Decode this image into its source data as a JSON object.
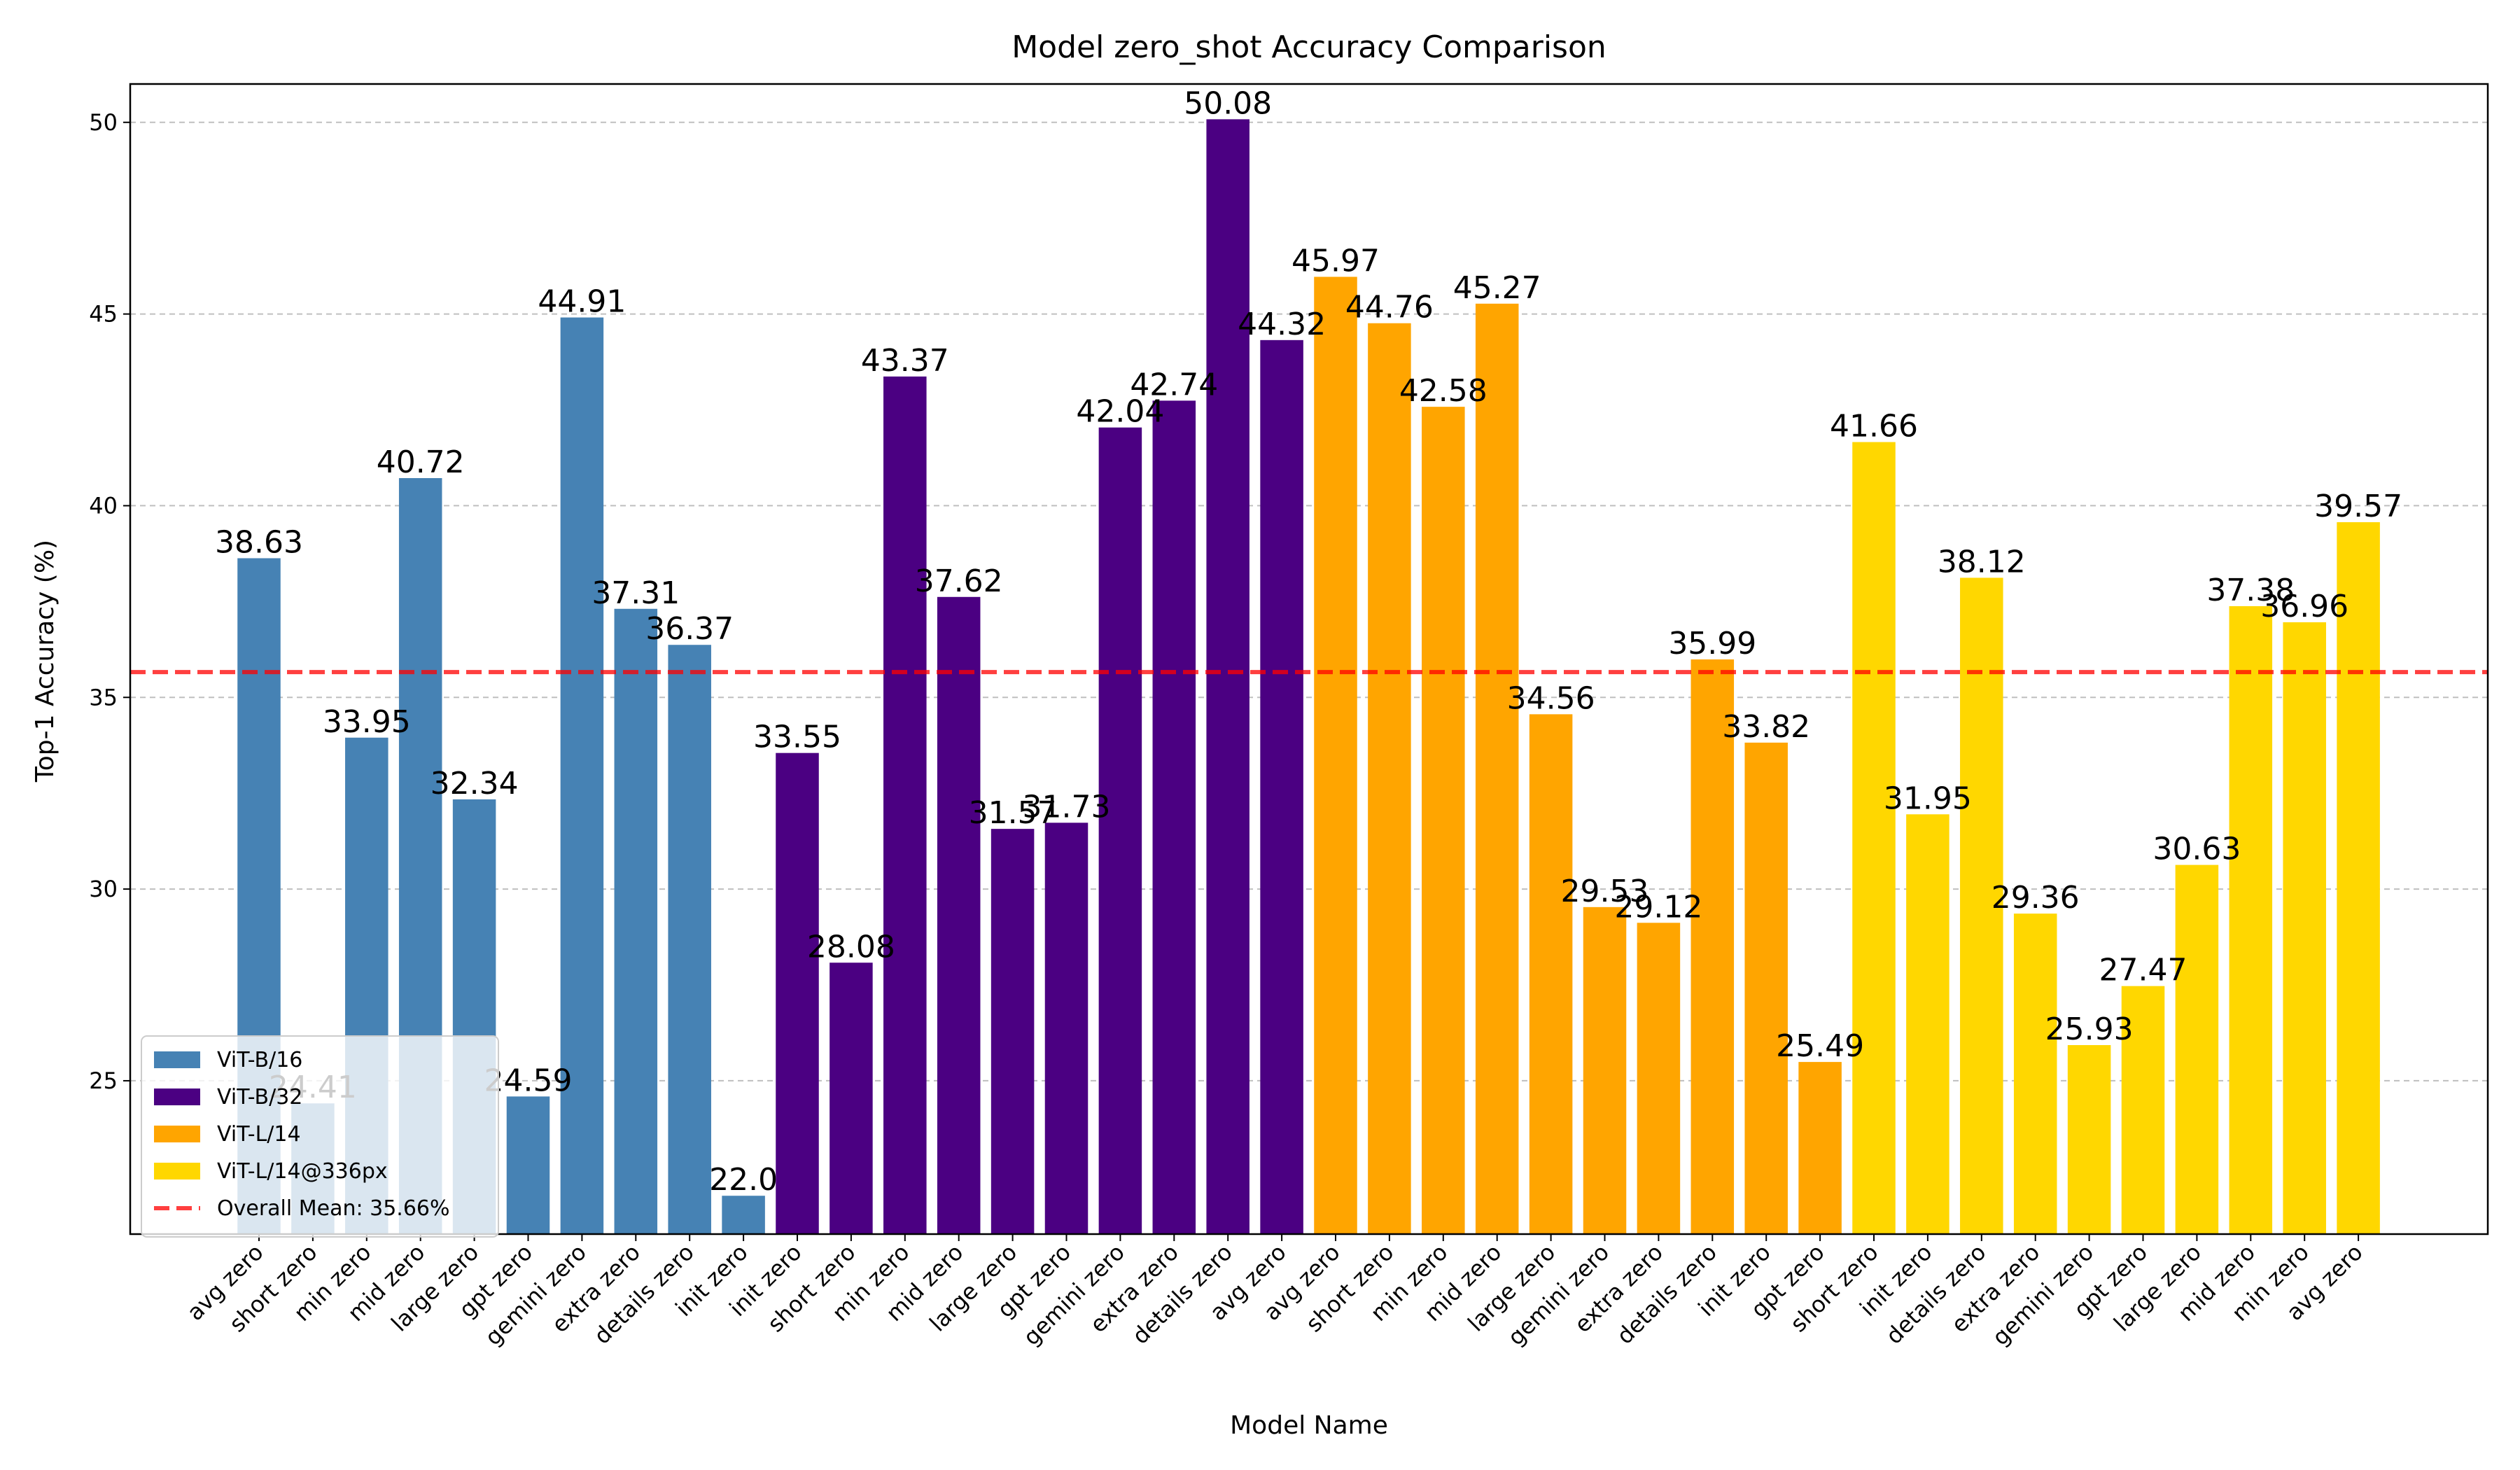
{
  "chart_data": {
    "type": "bar",
    "title": "Model zero_shot Accuracy Comparison",
    "x_label": "Model Name",
    "y_label": "Top-1 Accuracy (%)",
    "categories": [
      "avg zero",
      "short zero",
      "min zero",
      "mid zero",
      "large zero",
      "gpt zero",
      "gemini zero",
      "extra zero",
      "details zero",
      "init zero",
      "init zero",
      "short zero",
      "min zero",
      "mid zero",
      "large zero",
      "gpt zero",
      "gemini zero",
      "extra zero",
      "details zero",
      "avg zero",
      "avg zero",
      "short zero",
      "min zero",
      "mid zero",
      "large zero",
      "gemini zero",
      "extra zero",
      "details zero",
      "init zero",
      "gpt zero",
      "short zero",
      "init zero",
      "details zero",
      "extra zero",
      "gemini zero",
      "gpt zero",
      "large zero",
      "mid zero",
      "min zero",
      "avg zero"
    ],
    "series": [
      {
        "name": "ViT-B/16",
        "color": "#4682b4",
        "values": [
          38.63,
          24.41,
          33.95,
          40.72,
          32.34,
          24.59,
          44.91,
          37.31,
          36.37,
          22.0,
          null,
          null,
          null,
          null,
          null,
          null,
          null,
          null,
          null,
          null,
          null,
          null,
          null,
          null,
          null,
          null,
          null,
          null,
          null,
          null,
          null,
          null,
          null,
          null,
          null,
          null,
          null,
          null,
          null,
          null
        ],
        "value_labels": [
          "38.63",
          "24.41",
          "33.95",
          "40.72",
          "32.34",
          "24.59",
          "44.91",
          "37.31",
          "36.37",
          "22.0",
          null,
          null,
          null,
          null,
          null,
          null,
          null,
          null,
          null,
          null,
          null,
          null,
          null,
          null,
          null,
          null,
          null,
          null,
          null,
          null,
          null,
          null,
          null,
          null,
          null,
          null,
          null,
          null,
          null,
          null
        ]
      },
      {
        "name": "ViT-B/32",
        "color": "#4b0082",
        "values": [
          null,
          null,
          null,
          null,
          null,
          null,
          null,
          null,
          null,
          null,
          33.55,
          28.08,
          43.37,
          37.62,
          31.57,
          31.73,
          42.04,
          42.74,
          50.08,
          44.32,
          null,
          null,
          null,
          null,
          null,
          null,
          null,
          null,
          null,
          null,
          null,
          null,
          null,
          null,
          null,
          null,
          null,
          null,
          null,
          null
        ],
        "value_labels": [
          null,
          null,
          null,
          null,
          null,
          null,
          null,
          null,
          null,
          null,
          "33.55",
          "28.08",
          "43.37",
          "37.62",
          "31.57",
          "31.73",
          "42.04",
          "42.74",
          "50.08",
          "44.32",
          null,
          null,
          null,
          null,
          null,
          null,
          null,
          null,
          null,
          null,
          null,
          null,
          null,
          null,
          null,
          null,
          null,
          null,
          null,
          null
        ]
      },
      {
        "name": "ViT-L/14",
        "color": "#ffa500",
        "values": [
          null,
          null,
          null,
          null,
          null,
          null,
          null,
          null,
          null,
          null,
          null,
          null,
          null,
          null,
          null,
          null,
          null,
          null,
          null,
          null,
          45.97,
          44.76,
          42.58,
          45.27,
          34.56,
          29.53,
          29.12,
          35.99,
          33.82,
          25.49,
          null,
          null,
          null,
          null,
          null,
          null,
          null,
          null,
          null,
          null
        ],
        "value_labels": [
          null,
          null,
          null,
          null,
          null,
          null,
          null,
          null,
          null,
          null,
          null,
          null,
          null,
          null,
          null,
          null,
          null,
          null,
          null,
          null,
          "45.97",
          "44.76",
          "42.58",
          "45.27",
          "34.56",
          "29.53",
          "29.12",
          "35.99",
          "33.82",
          "25.49",
          null,
          null,
          null,
          null,
          null,
          null,
          null,
          null,
          null,
          null
        ]
      },
      {
        "name": "ViT-L/14@336px",
        "color": "#ffd700",
        "values": [
          null,
          null,
          null,
          null,
          null,
          null,
          null,
          null,
          null,
          null,
          null,
          null,
          null,
          null,
          null,
          null,
          null,
          null,
          null,
          null,
          null,
          null,
          null,
          null,
          null,
          null,
          null,
          null,
          null,
          null,
          41.66,
          31.95,
          38.12,
          29.36,
          25.93,
          27.47,
          30.63,
          37.38,
          36.96,
          39.57
        ],
        "value_labels": [
          null,
          null,
          null,
          null,
          null,
          null,
          null,
          null,
          null,
          null,
          null,
          null,
          null,
          null,
          null,
          null,
          null,
          null,
          null,
          null,
          null,
          null,
          null,
          null,
          null,
          null,
          null,
          null,
          null,
          null,
          "41.66",
          "31.95",
          "38.12",
          "29.36",
          "25.93",
          "27.47",
          "30.63",
          "37.38",
          "36.96",
          "39.57"
        ]
      }
    ],
    "mean_line": {
      "value": 35.66,
      "label": "Overall Mean: 35.66%",
      "color": "#ff0000"
    },
    "ylim": [
      21,
      51
    ],
    "yticks": [
      25,
      30,
      35,
      40,
      45,
      50
    ],
    "grid": true,
    "legend": "lower left"
  }
}
